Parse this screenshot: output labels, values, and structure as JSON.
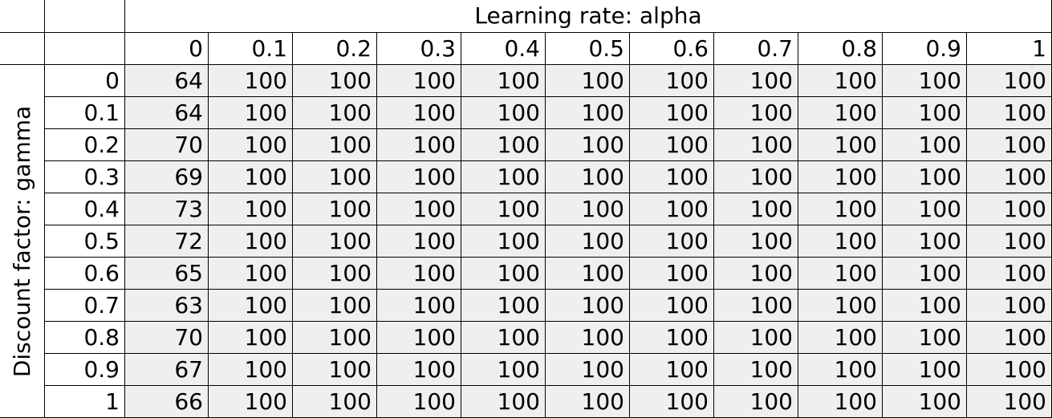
{
  "chart_data": {
    "type": "table",
    "column_title": "Learning rate: alpha",
    "row_title": "Discount factor: gamma",
    "columns": [
      "0",
      "0.1",
      "0.2",
      "0.3",
      "0.4",
      "0.5",
      "0.6",
      "0.7",
      "0.8",
      "0.9",
      "1"
    ],
    "rows": [
      "0",
      "0.1",
      "0.2",
      "0.3",
      "0.4",
      "0.5",
      "0.6",
      "0.7",
      "0.8",
      "0.9",
      "1"
    ],
    "values": [
      [
        64,
        100,
        100,
        100,
        100,
        100,
        100,
        100,
        100,
        100,
        100
      ],
      [
        64,
        100,
        100,
        100,
        100,
        100,
        100,
        100,
        100,
        100,
        100
      ],
      [
        70,
        100,
        100,
        100,
        100,
        100,
        100,
        100,
        100,
        100,
        100
      ],
      [
        69,
        100,
        100,
        100,
        100,
        100,
        100,
        100,
        100,
        100,
        100
      ],
      [
        73,
        100,
        100,
        100,
        100,
        100,
        100,
        100,
        100,
        100,
        100
      ],
      [
        72,
        100,
        100,
        100,
        100,
        100,
        100,
        100,
        100,
        100,
        100
      ],
      [
        65,
        100,
        100,
        100,
        100,
        100,
        100,
        100,
        100,
        100,
        100
      ],
      [
        63,
        100,
        100,
        100,
        100,
        100,
        100,
        100,
        100,
        100,
        100
      ],
      [
        70,
        100,
        100,
        100,
        100,
        100,
        100,
        100,
        100,
        100,
        100
      ],
      [
        67,
        100,
        100,
        100,
        100,
        100,
        100,
        100,
        100,
        100,
        100
      ],
      [
        66,
        100,
        100,
        100,
        100,
        100,
        100,
        100,
        100,
        100,
        100
      ]
    ],
    "colors": {
      "data_cell_background": "#efefef",
      "header_background": "#ffffff",
      "grid_line": "#000000"
    }
  }
}
